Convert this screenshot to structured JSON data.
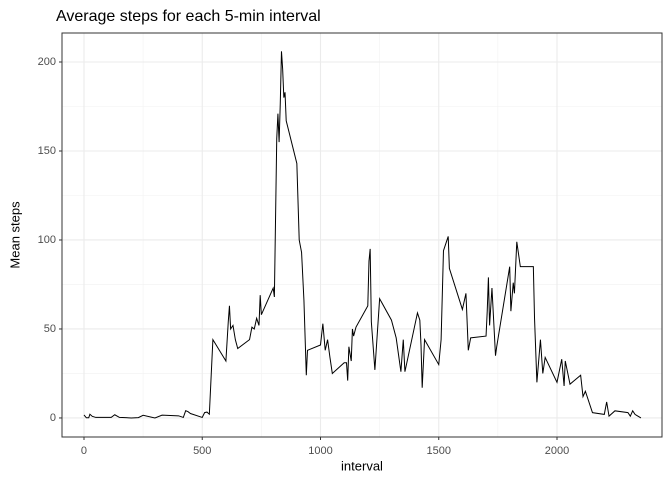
{
  "chart_data": {
    "type": "line",
    "title": "Average steps for each 5-min interval",
    "x_label": "interval",
    "y_label": "Mean steps",
    "x": [
      0,
      10,
      20,
      25,
      35,
      50,
      100,
      115,
      130,
      150,
      200,
      230,
      250,
      300,
      330,
      400,
      420,
      430,
      440,
      450,
      500,
      510,
      520,
      530,
      545,
      600,
      610,
      615,
      620,
      630,
      640,
      650,
      700,
      710,
      720,
      730,
      740,
      745,
      750,
      800,
      805,
      815,
      820,
      825,
      830,
      835,
      840,
      845,
      850,
      855,
      900,
      910,
      920,
      930,
      940,
      945,
      1000,
      1010,
      1020,
      1030,
      1040,
      1050,
      1100,
      1110,
      1115,
      1120,
      1130,
      1135,
      1140,
      1150,
      1200,
      1205,
      1210,
      1215,
      1230,
      1250,
      1300,
      1320,
      1340,
      1350,
      1357,
      1410,
      1420,
      1425,
      1430,
      1440,
      1500,
      1510,
      1520,
      1540,
      1545,
      1600,
      1615,
      1625,
      1635,
      1700,
      1705,
      1710,
      1715,
      1725,
      1740,
      1745,
      1800,
      1805,
      1815,
      1820,
      1830,
      1845,
      1900,
      1905,
      1915,
      1930,
      1940,
      1950,
      2000,
      2020,
      2030,
      2035,
      2055,
      2100,
      2110,
      2120,
      2150,
      2200,
      2210,
      2220,
      2245,
      2300,
      2310,
      2320,
      2330,
      2355
    ],
    "series": [
      {
        "color": "#000000",
        "values": [
          1.7,
          0.1,
          0.1,
          2.1,
          0.9,
          0.3,
          0.3,
          0.3,
          1.8,
          0.3,
          0,
          0.2,
          1.5,
          0,
          1.6,
          1.2,
          0.3,
          4.1,
          3.5,
          2.5,
          0.3,
          3,
          3.3,
          2.1,
          44,
          32,
          54,
          63,
          50,
          52,
          44,
          39,
          44,
          51,
          50,
          56,
          52,
          69,
          58,
          73,
          68,
          157,
          171,
          155,
          177,
          206,
          196,
          180,
          183,
          167,
          143,
          100,
          93,
          66,
          24,
          38,
          41,
          53,
          38,
          44,
          34,
          25,
          31,
          31,
          21,
          40,
          32,
          50,
          46,
          51,
          63,
          88,
          95,
          54,
          27,
          67,
          55,
          45,
          26,
          44,
          26,
          59,
          55,
          41,
          17,
          44,
          30,
          44,
          94,
          102,
          84,
          61,
          70,
          38,
          45,
          46,
          60,
          79,
          52,
          73,
          35,
          40,
          85,
          60,
          76,
          70,
          99,
          85,
          85,
          56,
          20,
          44,
          25,
          34,
          20,
          33,
          18,
          32,
          19,
          24,
          12,
          15,
          3,
          2,
          9,
          1,
          4,
          3,
          1,
          4,
          2,
          0
        ]
      }
    ],
    "xlim": [
      -93,
      2444
    ],
    "ylim": [
      -10.7,
      216.3
    ],
    "xticks": [
      0,
      500,
      1000,
      1500,
      2000
    ],
    "yticks": [
      0,
      50,
      100,
      150,
      200
    ],
    "grid": true
  }
}
